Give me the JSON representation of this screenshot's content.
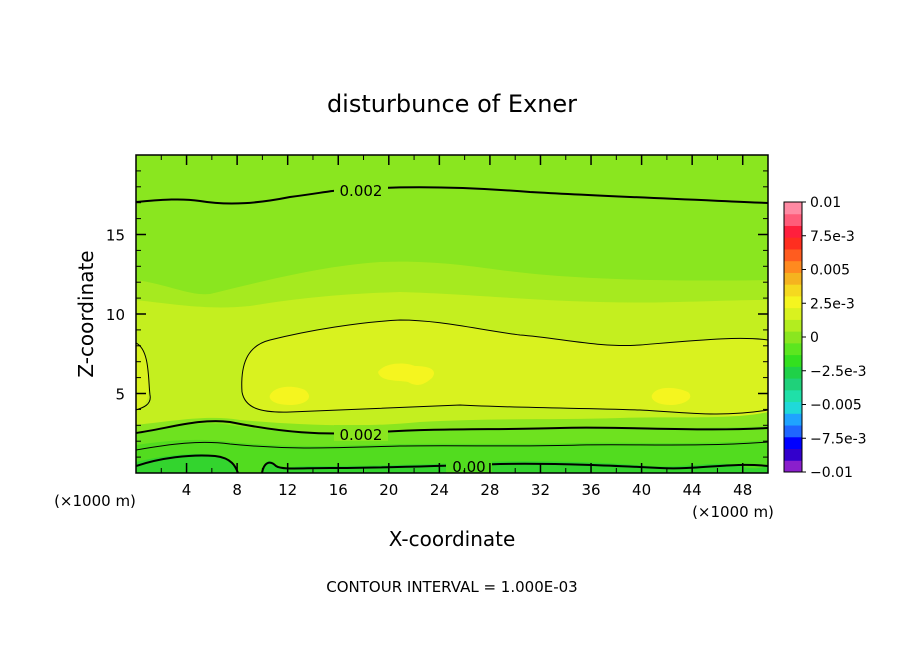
{
  "chart_data": {
    "type": "heatmap",
    "subtype": "filled-contour",
    "title": "disturbunce of Exner",
    "xlabel": "X-coordinate",
    "ylabel": "Z-coordinate",
    "x_unit_left": "(×1000 m)",
    "x_unit_right": "(×1000 m)",
    "xlim": [
      0,
      50
    ],
    "ylim": [
      0,
      20
    ],
    "x_ticks": [
      4,
      8,
      12,
      16,
      20,
      24,
      28,
      32,
      36,
      40,
      44,
      48
    ],
    "x_tick_labels": [
      "4",
      "8",
      "12",
      "16",
      "20",
      "24",
      "28",
      "32",
      "36",
      "40",
      "44",
      "48"
    ],
    "y_ticks": [
      5,
      10,
      15
    ],
    "y_tick_labels": [
      "5",
      "10",
      "15"
    ],
    "footer": "CONTOUR INTERVAL = 1.000E-03",
    "contour_labels": [
      "0.002",
      "0.002",
      "0.00"
    ],
    "colorbar": {
      "levels": [
        -0.01,
        -0.0075,
        -0.005,
        -0.0025,
        0,
        0.0025,
        0.005,
        0.0075,
        0.01
      ],
      "labels": [
        "0.01",
        "7.5e-3",
        "0.005",
        "2.5e-3",
        "0",
        "−2.5e-3",
        "−0.005",
        "−7.5e-3",
        "−0.01"
      ],
      "colors": [
        "#8a1fcc",
        "#3300cc",
        "#0000ff",
        "#1f66ff",
        "#1fa3ff",
        "#1fd9d9",
        "#1fe0a8",
        "#1fd17a",
        "#1fd148",
        "#33e01f",
        "#5ce61f",
        "#8ae61f",
        "#b3ed1f",
        "#d9f21f",
        "#f5f51f",
        "#f5d91f",
        "#f5b31f",
        "#ff8a1f",
        "#ff5c1f",
        "#ff2e1f",
        "#ff1f3d",
        "#ff5c7a",
        "#ff8aa3"
      ]
    },
    "bands": [
      {
        "level": "0.0035-0.004",
        "color": "#f5f51f"
      },
      {
        "level": "0.003-0.0035",
        "color": "#d9f21f"
      },
      {
        "level": "0.0025-0.003",
        "color": "#c4ef1f"
      },
      {
        "level": "0.002-0.0025",
        "color": "#a6ea1f"
      },
      {
        "level": "0.0015-0.002",
        "color": "#8ae61f"
      },
      {
        "level": "0.001-0.0015",
        "color": "#6ee21f"
      },
      {
        "level": "0.0005-0.001",
        "color": "#52dc1f"
      },
      {
        "level": "0-0.0005",
        "color": "#33d42e"
      }
    ],
    "grid": false
  }
}
